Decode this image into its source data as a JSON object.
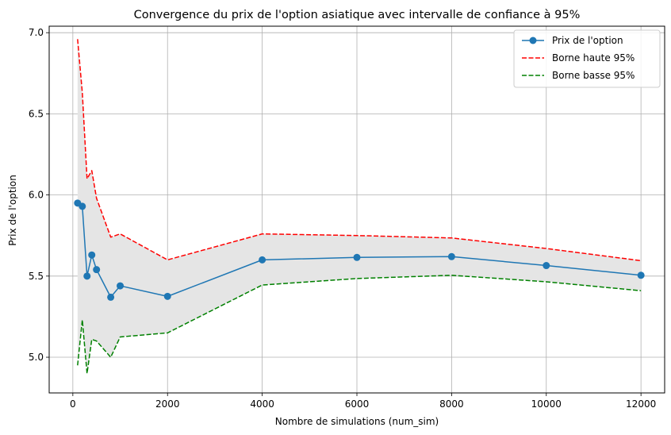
{
  "chart_data": {
    "type": "line",
    "title": "Convergence du prix de l'option asiatique avec intervalle de confiance à 95%",
    "xlabel": "Nombre de simulations (num_sim)",
    "ylabel": "Prix de l'option",
    "xlim": [
      -500,
      12500
    ],
    "ylim": [
      4.78,
      7.04
    ],
    "xticks": [
      0,
      2000,
      4000,
      6000,
      8000,
      10000,
      12000
    ],
    "yticks": [
      5.0,
      5.5,
      6.0,
      6.5,
      7.0
    ],
    "xtick_labels": [
      "0",
      "2000",
      "4000",
      "6000",
      "8000",
      "10000",
      "12000"
    ],
    "ytick_labels": [
      "5.0",
      "5.5",
      "6.0",
      "6.5",
      "7.0"
    ],
    "grid": true,
    "legend_position": "top-right",
    "confidence_band_color": "#e5e5e5",
    "x": [
      100,
      200,
      300,
      400,
      500,
      800,
      1000,
      2000,
      4000,
      6000,
      8000,
      10000,
      12000
    ],
    "series": [
      {
        "name": "Prix de l'option",
        "style": "solid-marker",
        "color": "#1f77b4",
        "values": [
          5.95,
          5.93,
          5.5,
          5.63,
          5.54,
          5.37,
          5.44,
          5.375,
          5.6,
          5.615,
          5.62,
          5.565,
          5.505
        ]
      },
      {
        "name": "Borne haute 95%",
        "style": "dashed",
        "color": "#ff0000",
        "values": [
          6.96,
          6.63,
          6.1,
          6.15,
          5.98,
          5.74,
          5.76,
          5.6,
          5.76,
          5.75,
          5.735,
          5.67,
          5.595
        ]
      },
      {
        "name": "Borne basse 95%",
        "style": "dashed",
        "color": "#008000",
        "values": [
          4.95,
          5.23,
          4.9,
          5.11,
          5.1,
          5.0,
          5.125,
          5.15,
          5.445,
          5.485,
          5.505,
          5.465,
          5.41
        ]
      }
    ]
  }
}
